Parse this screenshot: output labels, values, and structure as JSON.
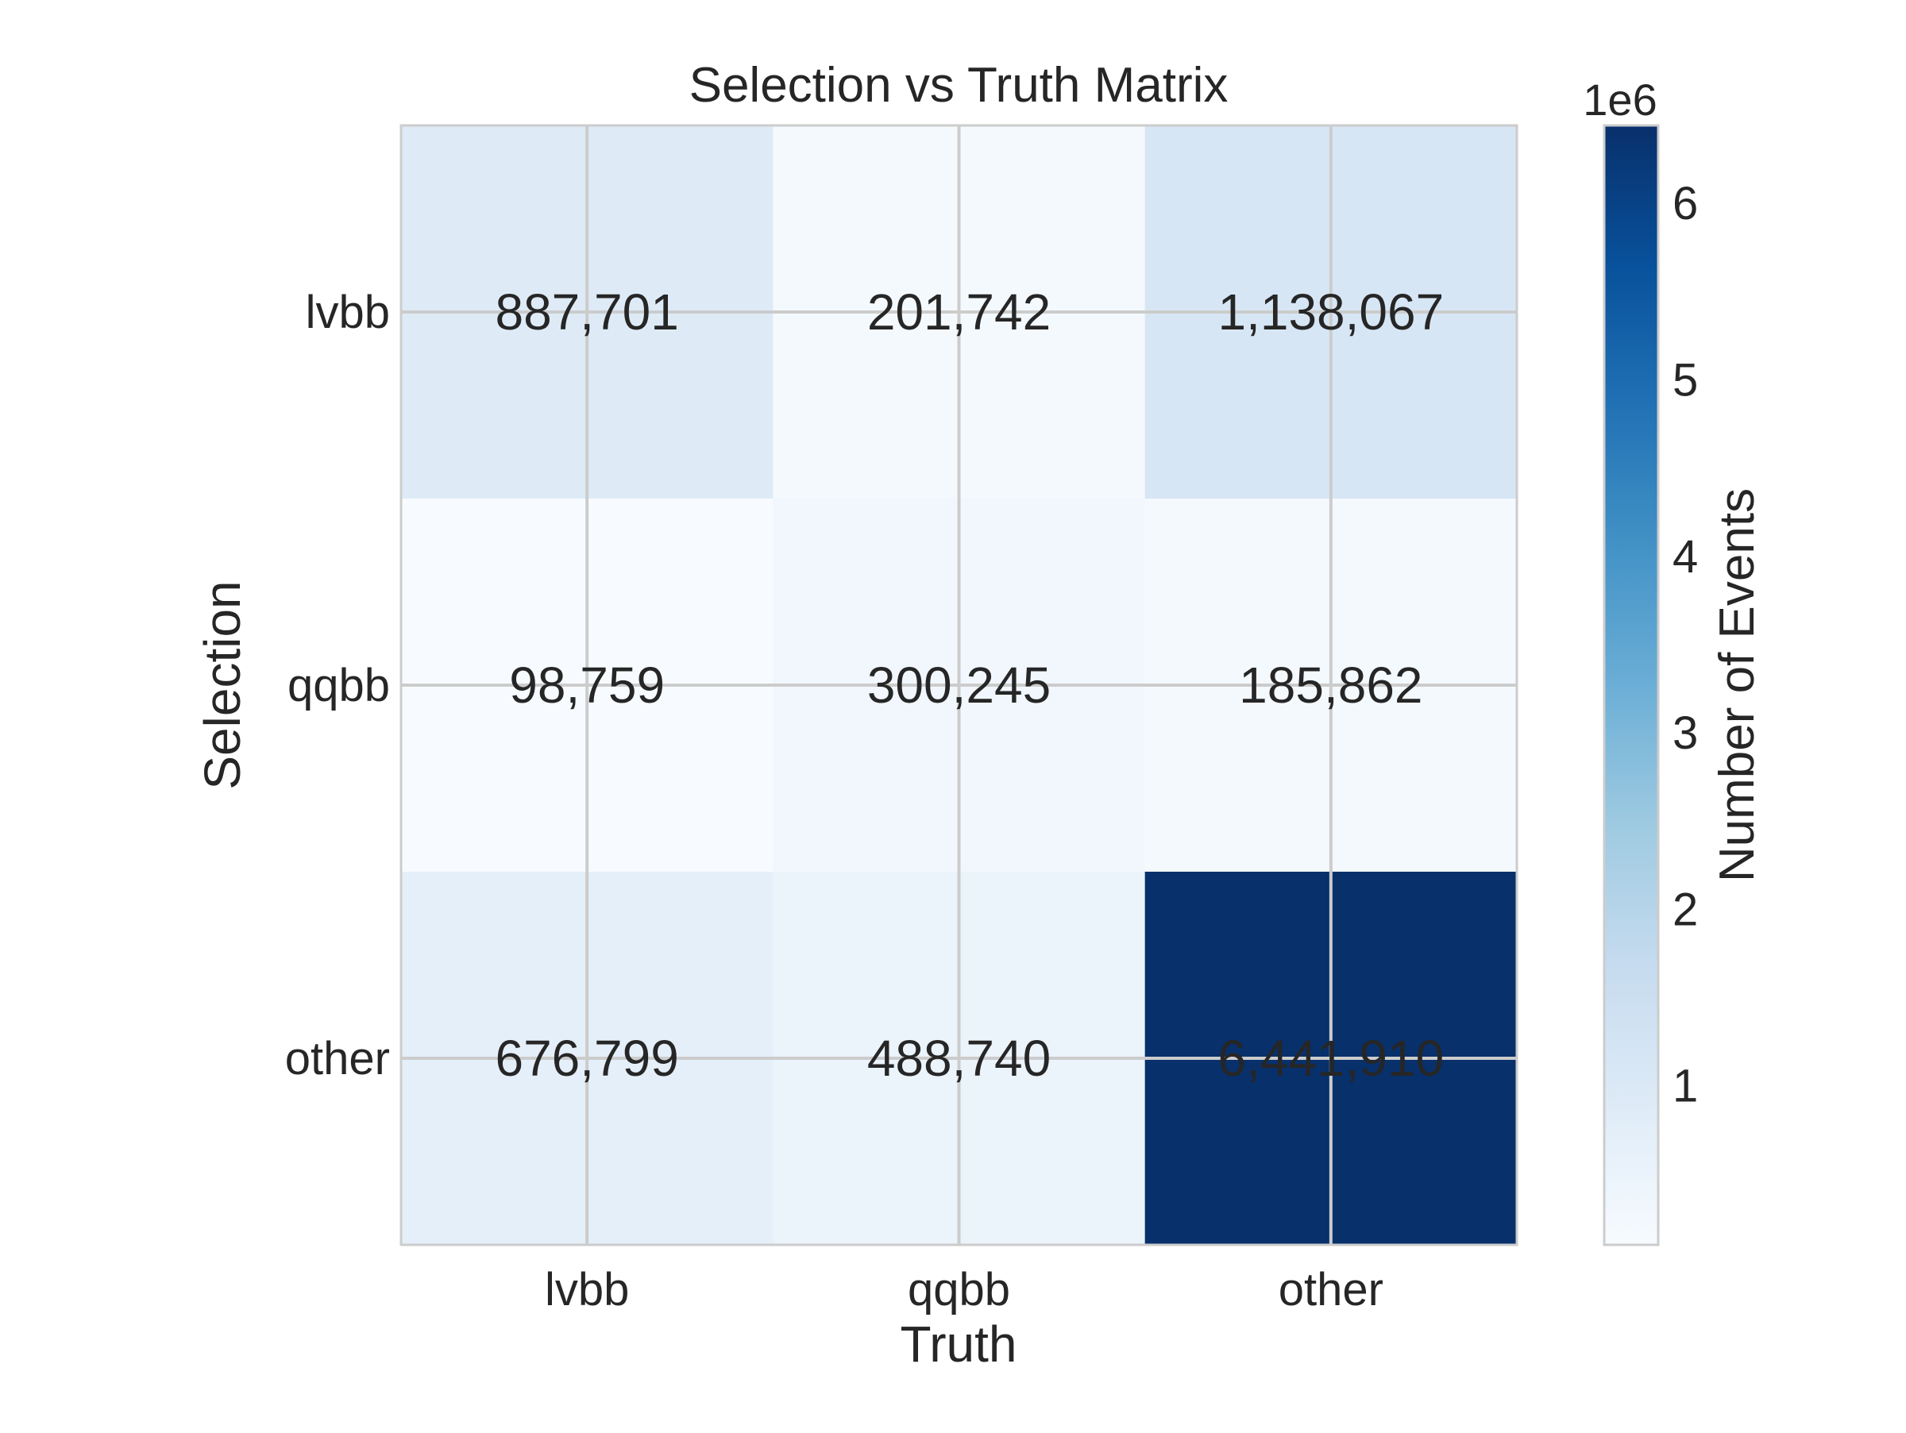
{
  "chart_data": {
    "type": "heatmap",
    "title": "Selection vs Truth Matrix",
    "xlabel": "Truth",
    "ylabel": "Selection",
    "x_categories": [
      "lvbb",
      "qqbb",
      "other"
    ],
    "y_categories": [
      "lvbb",
      "qqbb",
      "other"
    ],
    "values": [
      [
        887701,
        201742,
        1138067
      ],
      [
        98759,
        300245,
        185862
      ],
      [
        676799,
        488740,
        6441910
      ]
    ],
    "cell_labels": [
      [
        "887,701",
        "201,742",
        "1,138,067"
      ],
      [
        "98,759",
        "300,245",
        "185,862"
      ],
      [
        "676,799",
        "488,740",
        "6,441,910"
      ]
    ],
    "colormap": "Blues",
    "vmin": 98759,
    "vmax": 6441910,
    "colorbar": {
      "label": "Number of Events",
      "offset_text": "1e6",
      "scale": 1000000,
      "ticks": [
        1,
        2,
        3,
        4,
        5,
        6
      ]
    },
    "grid": true,
    "colors": {
      "grid": "#cccccc",
      "text": "#262626",
      "frame": "#cccccc"
    }
  }
}
